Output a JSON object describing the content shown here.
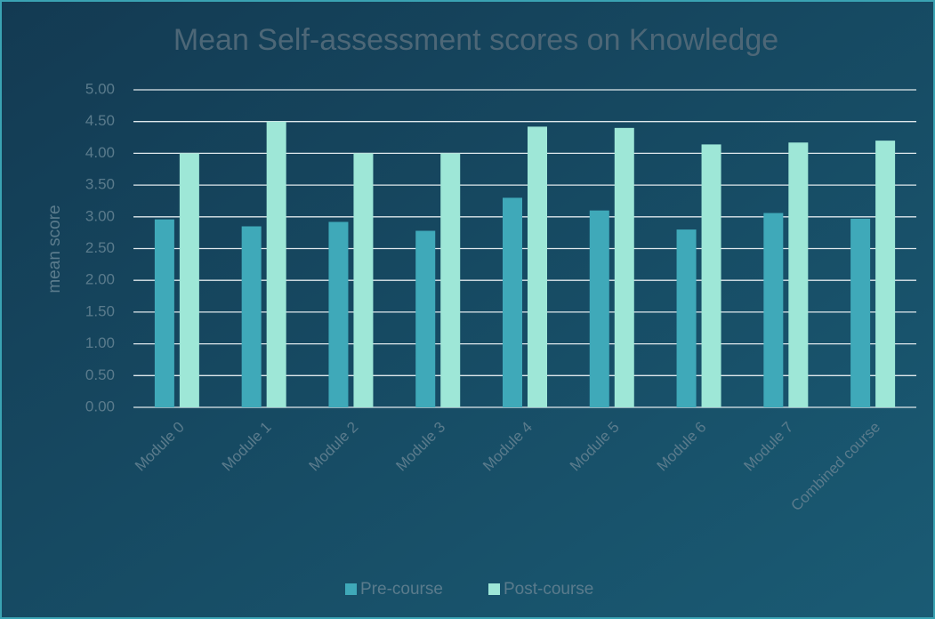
{
  "chart_data": {
    "type": "bar",
    "title": "Mean Self-assessment scores on Knowledge",
    "y_label": "mean score",
    "categories": [
      "Module 0",
      "Module 1",
      "Module 2",
      "Module 3",
      "Module 4",
      "Module 5",
      "Module 6",
      "Module 7",
      "Combined course"
    ],
    "series": [
      {
        "name": "Pre-course",
        "color": "#3fa9b9",
        "values": [
          2.96,
          2.85,
          2.92,
          2.78,
          3.3,
          3.1,
          2.8,
          3.06,
          2.97
        ]
      },
      {
        "name": "Post-course",
        "color": "#9ee7d7",
        "values": [
          4.0,
          4.5,
          4.0,
          4.0,
          4.42,
          4.4,
          4.14,
          4.17,
          4.2
        ]
      }
    ],
    "ylim": [
      0,
      5
    ],
    "yticks": [
      {
        "value": 0,
        "label": "0.00"
      },
      {
        "value": 0.5,
        "label": "0.50"
      },
      {
        "value": 1,
        "label": "1.00"
      },
      {
        "value": 1.5,
        "label": "1.50"
      },
      {
        "value": 2,
        "label": "2.00"
      },
      {
        "value": 2.5,
        "label": "2.50"
      },
      {
        "value": 3,
        "label": "3.00"
      },
      {
        "value": 3.5,
        "label": "3.50"
      },
      {
        "value": 4,
        "label": "4.00"
      },
      {
        "value": 4.5,
        "label": "4.50"
      },
      {
        "value": 5,
        "label": "5.00"
      }
    ],
    "grid": true,
    "legend": "bottom"
  }
}
